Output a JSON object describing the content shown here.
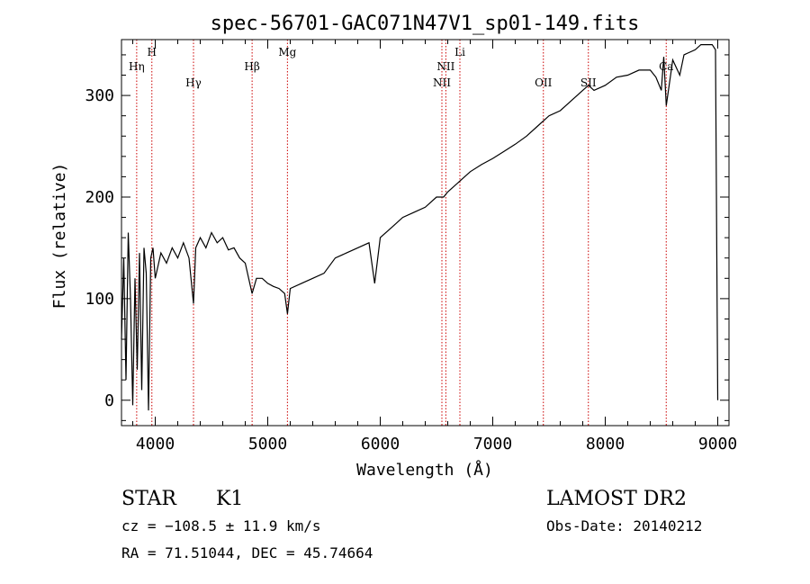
{
  "chart_data": {
    "type": "line",
    "title": "spec-56701-GAC071N47V1_sp01-149.fits",
    "xlabel": "Wavelength (Å)",
    "ylabel": "Flux (relative)",
    "xlim": [
      3700,
      9100
    ],
    "ylim": [
      -25,
      355
    ],
    "xticks": [
      4000,
      5000,
      6000,
      7000,
      8000,
      9000
    ],
    "yticks": [
      0,
      100,
      200,
      300
    ],
    "grid": false,
    "line_color": "#000000",
    "marker_color": "#cc0000",
    "series": [
      {
        "x": [
          3700,
          3720,
          3740,
          3760,
          3780,
          3800,
          3820,
          3840,
          3860,
          3880,
          3900,
          3920,
          3940,
          3960,
          3980,
          4000,
          4050,
          4100,
          4150,
          4200,
          4250,
          4300,
          4340,
          4360,
          4400,
          4450,
          4500,
          4550,
          4600,
          4650,
          4700,
          4750,
          4800,
          4861,
          4900,
          4950,
          5000,
          5050,
          5100,
          5150,
          5175,
          5200,
          5300,
          5400,
          5500,
          5600,
          5700,
          5800,
          5900,
          5950,
          6000,
          6100,
          6200,
          6300,
          6400,
          6500,
          6563,
          6600,
          6700,
          6800,
          6900,
          7000,
          7100,
          7200,
          7300,
          7400,
          7450,
          7500,
          7600,
          7700,
          7800,
          7850,
          7900,
          8000,
          8100,
          8200,
          8300,
          8400,
          8450,
          8498,
          8520,
          8542,
          8600,
          8662,
          8700,
          8800,
          8850,
          8900,
          8950,
          8980,
          8995,
          9000
        ],
        "y": [
          60,
          140,
          20,
          165,
          100,
          -5,
          120,
          30,
          145,
          10,
          150,
          125,
          -10,
          140,
          150,
          120,
          145,
          135,
          150,
          140,
          155,
          140,
          95,
          150,
          160,
          150,
          165,
          155,
          160,
          148,
          150,
          140,
          135,
          105,
          120,
          120,
          115,
          112,
          110,
          105,
          85,
          110,
          115,
          120,
          125,
          140,
          145,
          150,
          155,
          115,
          160,
          170,
          180,
          185,
          190,
          200,
          200,
          205,
          215,
          225,
          232,
          238,
          245,
          252,
          260,
          270,
          275,
          280,
          285,
          295,
          305,
          310,
          305,
          310,
          318,
          320,
          325,
          325,
          318,
          305,
          338,
          290,
          335,
          320,
          340,
          345,
          350,
          350,
          350,
          345,
          80,
          0
        ]
      }
    ],
    "lines": [
      {
        "label": "Hη",
        "x": 3835,
        "row": 2
      },
      {
        "label": "H",
        "x": 3970,
        "row": 1
      },
      {
        "label": "Hγ",
        "x": 4340,
        "row": 3
      },
      {
        "label": "Hβ",
        "x": 4861,
        "row": 2
      },
      {
        "label": "Mg",
        "x": 5175,
        "row": 1
      },
      {
        "label": "NII",
        "x": 6548,
        "row": 3
      },
      {
        "label": "NII",
        "x": 6583,
        "row": 2
      },
      {
        "label": "Li",
        "x": 6708,
        "row": 1
      },
      {
        "label": "OII",
        "x": 7450,
        "row": 3
      },
      {
        "label": "SII",
        "x": 7850,
        "row": 3
      },
      {
        "label": "Ca",
        "x": 8542,
        "row": 2
      }
    ]
  },
  "info": {
    "class": "STAR",
    "subclass": "K1",
    "survey": "LAMOST DR2",
    "cz": "cz = −108.5 ± 11.9 km/s",
    "obs_date": "Obs-Date: 20140212",
    "radec": "RA =  71.51044, DEC =  45.74664"
  }
}
